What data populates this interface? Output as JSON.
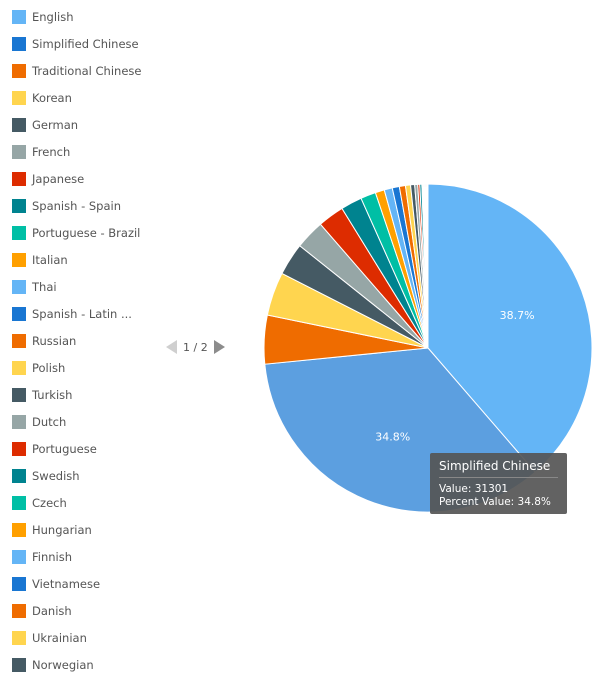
{
  "chart_data": {
    "type": "pie",
    "slices": [
      {
        "label": "English",
        "percent": 38.7,
        "color": "#64b5f6",
        "show_label": true
      },
      {
        "label": "Simplified Chinese",
        "percent": 34.8,
        "value": 31301,
        "color": "#5c9fe0",
        "show_label": true
      },
      {
        "label": "Traditional Chinese",
        "percent": 4.8,
        "color": "#ef6c00",
        "show_label": false
      },
      {
        "label": "Korean",
        "percent": 4.3,
        "color": "#ffd54f",
        "show_label": false
      },
      {
        "label": "German",
        "percent": 3.2,
        "color": "#455a64",
        "show_label": false
      },
      {
        "label": "French",
        "percent": 2.9,
        "color": "#96a6a6",
        "show_label": false
      },
      {
        "label": "Japanese",
        "percent": 2.6,
        "color": "#dd2c00",
        "show_label": false
      },
      {
        "label": "Spanish - Spain",
        "percent": 2.1,
        "color": "#00838f",
        "show_label": false
      },
      {
        "label": "Portuguese - Brazil",
        "percent": 1.5,
        "color": "#00bfa5",
        "show_label": false
      },
      {
        "label": "Italian",
        "percent": 0.9,
        "color": "#ffa000",
        "show_label": false
      },
      {
        "label": "Thai",
        "percent": 0.8,
        "color": "#64b5f6",
        "show_label": false
      },
      {
        "label": "Spanish - Latin ...",
        "percent": 0.7,
        "color": "#1976d2",
        "show_label": false
      },
      {
        "label": "Russian",
        "percent": 0.6,
        "color": "#ef6c00",
        "show_label": false
      },
      {
        "label": "Polish",
        "percent": 0.5,
        "color": "#ffd54f",
        "show_label": false
      },
      {
        "label": "Turkish",
        "percent": 0.4,
        "color": "#455a64",
        "show_label": false
      },
      {
        "label": "Dutch",
        "percent": 0.3,
        "color": "#96a6a6",
        "show_label": false
      },
      {
        "label": "Portuguese",
        "percent": 0.2,
        "color": "#dd2c00",
        "show_label": false
      },
      {
        "label": "Swedish",
        "percent": 0.2,
        "color": "#00838f",
        "show_label": false
      },
      {
        "label": "Czech",
        "percent": 0.1,
        "color": "#00bfa5",
        "show_label": false
      },
      {
        "label": "Hungarian",
        "percent": 0.1,
        "color": "#ffa000",
        "show_label": false
      },
      {
        "label": "Finnish",
        "percent": 0.1,
        "color": "#64b5f6",
        "show_label": false
      },
      {
        "label": "Vietnamese",
        "percent": 0.1,
        "color": "#1976d2",
        "show_label": false
      },
      {
        "label": "Danish",
        "percent": 0.1,
        "color": "#ef6c00",
        "show_label": false
      },
      {
        "label": "Ukrainian",
        "percent": 0.05,
        "color": "#ffd54f",
        "show_label": false
      },
      {
        "label": "Norwegian",
        "percent": 0.05,
        "color": "#455a64",
        "show_label": false
      }
    ],
    "legend_placement": "left",
    "legend_colors": [
      "#64b5f6",
      "#1976d2",
      "#ef6c00",
      "#ffd54f",
      "#455a64",
      "#96a6a6",
      "#dd2c00",
      "#00838f",
      "#00bfa5",
      "#ffa000",
      "#64b5f6",
      "#1976d2",
      "#ef6c00",
      "#ffd54f",
      "#455a64",
      "#96a6a6",
      "#dd2c00",
      "#00838f",
      "#00bfa5",
      "#ffa000",
      "#64b5f6",
      "#1976d2",
      "#ef6c00",
      "#ffd54f",
      "#455a64"
    ]
  },
  "pager": {
    "text": "1 / 2"
  },
  "tooltip": {
    "title": "Simplified Chinese",
    "value_line": "Value: 31301",
    "percent_line": "Percent Value: 34.8%"
  }
}
